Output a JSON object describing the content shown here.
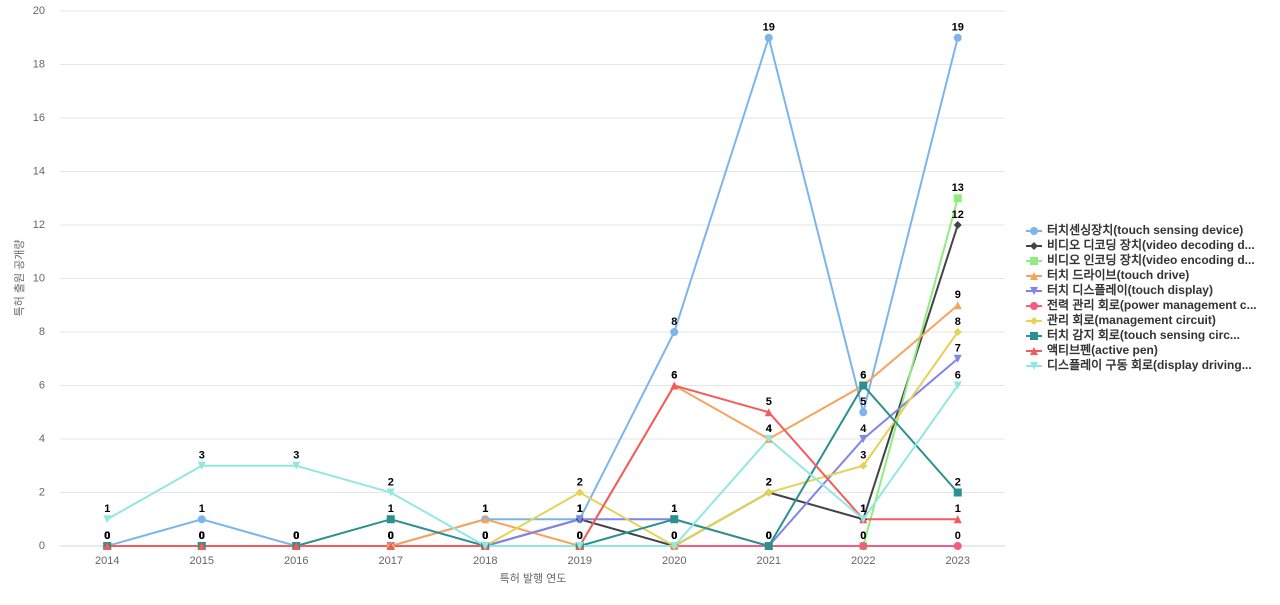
{
  "chart_data": {
    "type": "line",
    "x_label": "특허 발행 연도",
    "y_label": "특허 출원 공개량",
    "categories": [
      "2014",
      "2015",
      "2016",
      "2017",
      "2018",
      "2019",
      "2020",
      "2021",
      "2022",
      "2023"
    ],
    "ylim": [
      0,
      20
    ],
    "yticks": [
      0,
      2,
      4,
      6,
      8,
      10,
      12,
      14,
      16,
      18,
      20
    ],
    "grid": true,
    "legend": "right",
    "series": [
      {
        "name": "터치센싱장치(touch sensing device)",
        "color": "#7cb5ec",
        "marker": "circle",
        "values": [
          0,
          1,
          0,
          0,
          1,
          1,
          8,
          19,
          5,
          19
        ]
      },
      {
        "name": "비디오 디코딩 장치(video decoding d...",
        "color": "#434348",
        "marker": "diamond",
        "values": [
          0,
          0,
          0,
          0,
          0,
          1,
          0,
          2,
          1,
          12
        ]
      },
      {
        "name": "비디오 인코딩 장치(video encoding d...",
        "color": "#90ed7d",
        "marker": "square",
        "values": [
          0,
          0,
          0,
          0,
          0,
          0,
          0,
          0,
          0,
          13
        ]
      },
      {
        "name": "터치 드라이브(touch drive)",
        "color": "#f7a35c",
        "marker": "triangle",
        "values": [
          0,
          0,
          0,
          0,
          1,
          0,
          6,
          4,
          6,
          9
        ]
      },
      {
        "name": "터치 디스플레이(touch display)",
        "color": "#8085e9",
        "marker": "triangle-down",
        "values": [
          0,
          0,
          0,
          0,
          0,
          1,
          1,
          0,
          4,
          7
        ]
      },
      {
        "name": "전력 관리 회로(power management c...",
        "color": "#f15c80",
        "marker": "circle",
        "values": [
          0,
          0,
          0,
          0,
          0,
          0,
          0,
          0,
          0,
          0
        ]
      },
      {
        "name": "관리 회로(management circuit)",
        "color": "#e4d354",
        "marker": "diamond",
        "values": [
          0,
          0,
          0,
          0,
          0,
          2,
          0,
          2,
          3,
          8
        ]
      },
      {
        "name": "터치 감지 회로(touch sensing circ...",
        "color": "#2b908f",
        "marker": "square",
        "values": [
          0,
          0,
          0,
          1,
          0,
          0,
          1,
          0,
          6,
          2
        ]
      },
      {
        "name": "액티브펜(active pen)",
        "color": "#f45b5b",
        "marker": "triangle",
        "values": [
          0,
          0,
          0,
          0,
          0,
          0,
          6,
          5,
          1,
          1
        ]
      },
      {
        "name": "디스플레이 구동 회로(display driving...",
        "color": "#91e8e1",
        "marker": "triangle-down",
        "values": [
          1,
          3,
          3,
          2,
          0,
          0,
          0,
          4,
          1,
          6
        ]
      }
    ]
  }
}
